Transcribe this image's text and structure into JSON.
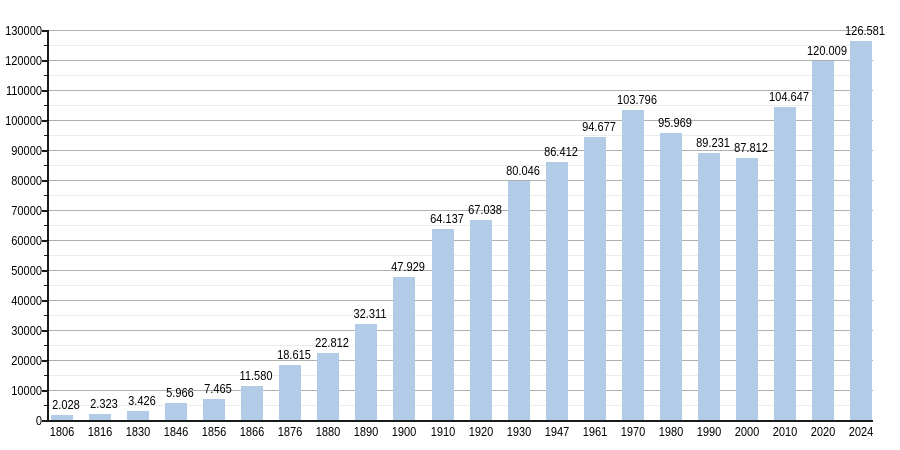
{
  "chart_data": {
    "type": "bar",
    "title": "",
    "xlabel": "",
    "ylabel": "",
    "legend": "none",
    "grid": "major-and-minor-horizontal",
    "categories": [
      "1806",
      "1816",
      "1830",
      "1846",
      "1856",
      "1866",
      "1876",
      "1880",
      "1890",
      "1900",
      "1910",
      "1920",
      "1930",
      "1947",
      "1961",
      "1970",
      "1980",
      "1990",
      "2000",
      "2010",
      "2020",
      "2024"
    ],
    "values": [
      2028,
      2323,
      3426,
      5966,
      7465,
      11580,
      18615,
      22812,
      32311,
      47929,
      64137,
      67038,
      80046,
      86412,
      94677,
      103796,
      95969,
      89231,
      87812,
      104647,
      120009,
      126581
    ],
    "value_labels": [
      "2.028",
      "2.323",
      "3.426",
      "5.966",
      "7.465",
      "11.580",
      "18.615",
      "22.812",
      "32.311",
      "47.929",
      "64.137",
      "67.038",
      "80.046",
      "86.412",
      "94.677",
      "103.796",
      "95.969",
      "89.231",
      "87.812",
      "104.647",
      "120.009",
      "126.581"
    ],
    "ylim": [
      0,
      130000
    ],
    "y_major_step": 10000,
    "y_minor_step": 5000,
    "y_tick_labels": [
      "0",
      "10000",
      "20000",
      "30000",
      "40000",
      "50000",
      "60000",
      "70000",
      "80000",
      "90000",
      "100000",
      "110000",
      "120000",
      "130000"
    ],
    "colors": {
      "bar_fill": "#b2cbe6",
      "major_grid": "#b0b0b0",
      "minor_grid": "#ececec",
      "axis": "#1a1a1a",
      "text": "#000000",
      "background": "#ffffff"
    }
  }
}
